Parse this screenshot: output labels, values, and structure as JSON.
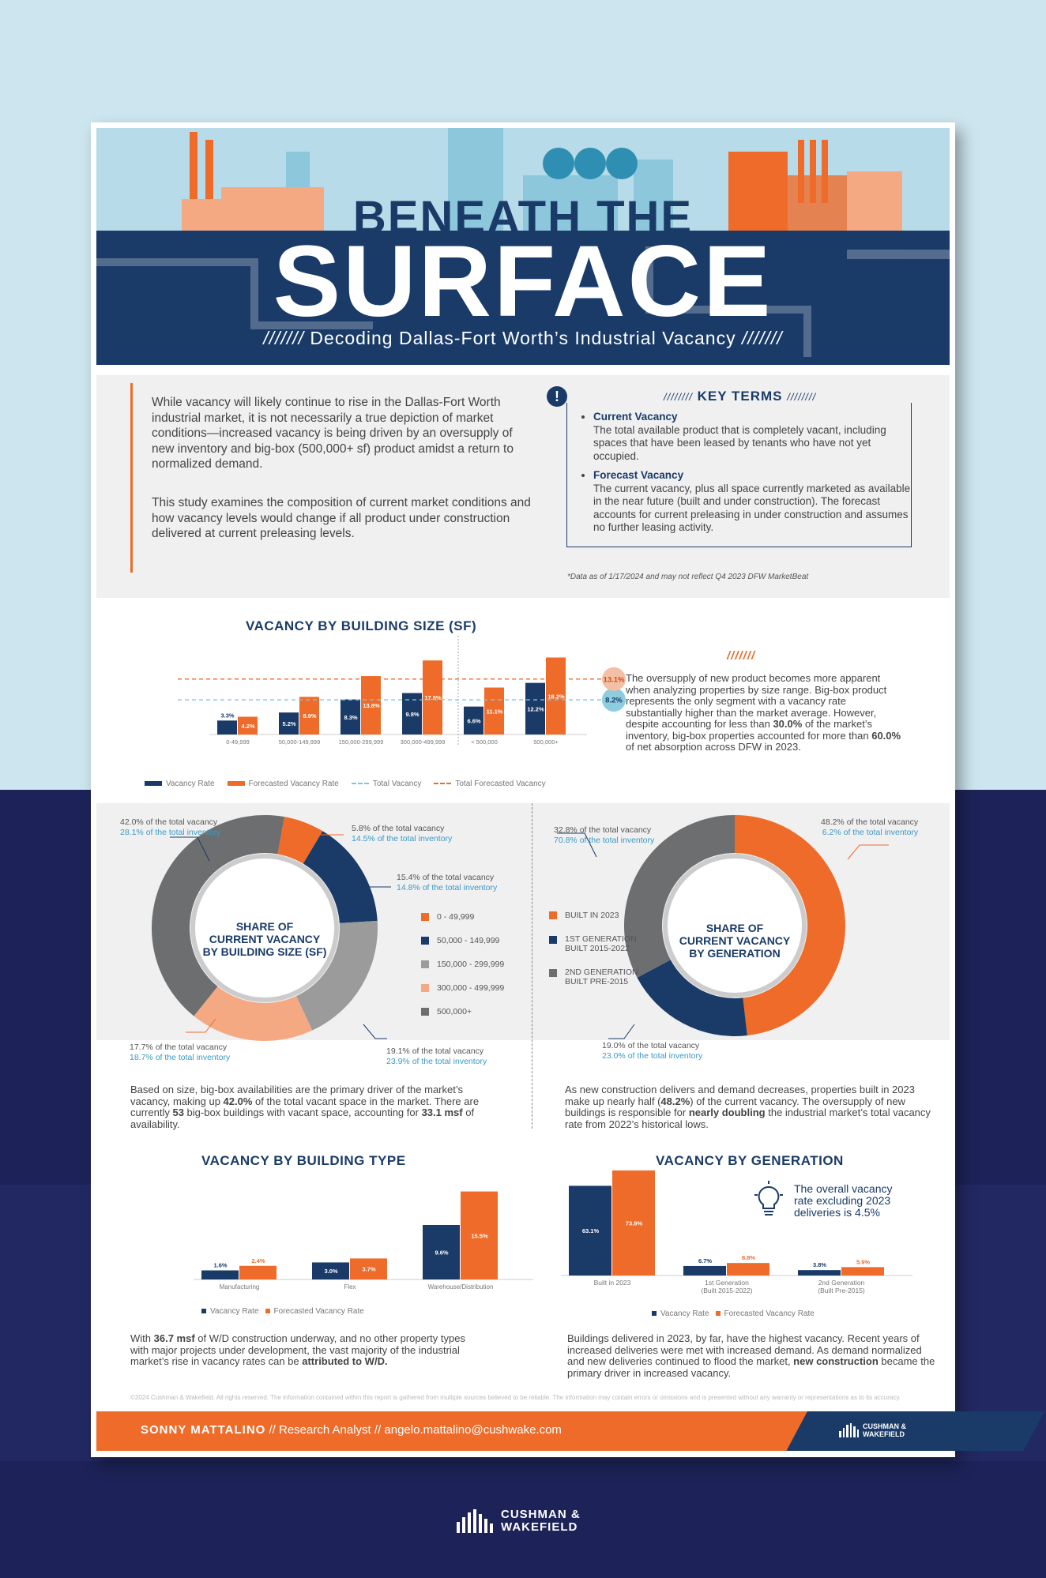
{
  "header": {
    "title_small": "BENEATH THE",
    "title_big": "SURFACE",
    "subtitle_prefix": "///////",
    "subtitle": "Decoding Dallas-Fort Worth’s Industrial Vacancy",
    "subtitle_suffix": "///////"
  },
  "intro": {
    "p1": "While vacancy will likely continue to rise in the Dallas-Fort Worth industrial market, it is not necessarily a true depiction of market conditions—increased vacancy is being driven by an oversupply of new inventory and big-box (500,000+ sf) product amidst a return to normalized demand.",
    "p2": "This study examines the composition of current market conditions and how vacancy levels would change if all product under construction delivered at current preleasing levels.",
    "key_terms_title": "KEY TERMS",
    "key_terms_slashes_left": "////////",
    "key_terms_slashes_right": "////////",
    "exclaim": "!",
    "term1_name": "Current Vacancy",
    "term1_def": "The total available product that is completely vacant, including spaces that have been leased by tenants who have not yet occupied.",
    "term2_name": "Forecast Vacancy",
    "term2_def": "The current vacancy, plus all space currently marketed as available in the near future (built and under construction). The forecast accounts for current preleasing in under construction and assumes no further leasing activity.",
    "note": "*Data as of 1/17/2024 and may not reflect Q4 2023 DFW MarketBeat"
  },
  "size_section": {
    "title": "VACANCY BY BUILDING SIZE (SF)",
    "slashes": "///////",
    "text_a": "The oversupply of new product becomes more apparent when analyzing properties by size range. Big-box product represents the only segment with a vacancy rate substantially higher than the market average. However, despite accounting for less than ",
    "text_b": "30.0%",
    "text_c": " of the market’s inventory, big-box properties accounted for more than ",
    "text_d": "60.0%",
    "text_e": " of net absorption across DFW in 2023.",
    "legend": [
      "Vacancy Rate",
      "Forecasted Vacancy Rate",
      "Total Vacancy",
      "Total Forecasted Vacancy"
    ]
  },
  "donut_size": {
    "center": [
      "SHARE OF",
      "CURRENT VACANCY",
      "BY BUILDING SIZE (SF)"
    ],
    "legend": [
      "0 - 49,999",
      "50,000 - 149,999",
      "150,000 - 299,999",
      "300,000 - 499,999",
      "500,000+"
    ],
    "callouts": [
      {
        "a": "42.0% of the total vacancy",
        "b": "28.1% of the total inventory"
      },
      {
        "a": "5.8% of the total vacancy",
        "b": "14.5% of the total inventory"
      },
      {
        "a": "15.4% of the total vacancy",
        "b": "14.8% of the total inventory"
      },
      {
        "a": "17.7% of the total vacancy",
        "b": "18.7% of the total inventory"
      },
      {
        "a": "19.1% of the total vacancy",
        "b": "23.9% of the total inventory"
      }
    ],
    "text_a": "Based on size, big-box availabilities are the primary driver of the market’s vacancy, making up ",
    "text_b": "42.0%",
    "text_c": " of the total vacant space in the market. There are currently ",
    "text_d": "53",
    "text_e": " big-box buildings with vacant space, accounting for ",
    "text_f": "33.1 msf",
    "text_g": " of availability."
  },
  "donut_gen": {
    "center": [
      "SHARE OF",
      "CURRENT VACANCY",
      "BY GENERATION"
    ],
    "legend": [
      "BUILT IN 2023",
      "1ST GENERATION\nBUILT 2015-2022",
      "2ND GENERATION\nBUILT PRE-2015"
    ],
    "callouts": [
      {
        "a": "32.8% of the total vacancy",
        "b": "70.8% of the total inventory"
      },
      {
        "a": "48.2% of the total vacancy",
        "b": "6.2% of the total inventory"
      },
      {
        "a": "19.0% of the total vacancy",
        "b": "23.0% of the total inventory"
      }
    ],
    "text_a": "As new construction delivers and demand decreases, properties built in 2023 make up nearly half (",
    "text_b": "48.2%",
    "text_c": ") of the current vacancy. The oversupply of new buildings is responsible for ",
    "text_d": "nearly doubling",
    "text_e": " the industrial market’s total vacancy rate from 2022’s historical lows."
  },
  "type_section": {
    "title": "VACANCY BY BUILDING TYPE",
    "legend": [
      "Vacancy Rate",
      "Forecasted Vacancy Rate"
    ],
    "text_a": "With ",
    "text_b": "36.7 msf",
    "text_c": " of W/D construction underway, and no other property types with major projects under development, the vast majority of the industrial market’s rise in vacancy rates can be ",
    "text_d": "attributed to W/D."
  },
  "gen_section": {
    "title": "VACANCY BY GENERATION",
    "legend": [
      "Vacancy Rate",
      "Forecasted Vacancy Rate"
    ],
    "bulb_text": "The overall vacancy rate excluding 2023 deliveries is 4.5%",
    "text_a": "Buildings delivered in 2023, by far, have the highest vacancy. Recent years of increased deliveries were met with increased demand. As demand normalized and new deliveries continued to flood the market, ",
    "text_b": "new construction",
    "text_c": " became the primary driver in increased vacancy."
  },
  "chart_data": [
    {
      "type": "bar",
      "title": "VACANCY BY BUILDING SIZE (SF)",
      "categories": [
        "0-49,999",
        "50,000-149,999",
        "150,000-299,999",
        "300,000-499,999",
        "< 500,000",
        "500,000+"
      ],
      "series": [
        {
          "name": "Vacancy Rate",
          "values": [
            3.3,
            5.2,
            8.3,
            9.8,
            6.6,
            12.2
          ],
          "labels": [
            "3.3%",
            "5.2%",
            "8.3%",
            "9.8%",
            "6.6%",
            "12.2%"
          ]
        },
        {
          "name": "Forecasted Vacancy Rate",
          "values": [
            4.2,
            8.9,
            13.8,
            17.5,
            11.1,
            18.2
          ],
          "labels": [
            "4.2%",
            "8.9%",
            "13.8%",
            "17.5%",
            "11.1%",
            "18.2%"
          ]
        }
      ],
      "reference_lines": [
        {
          "name": "Total Vacancy",
          "value": 8.2,
          "label": "8.2%"
        },
        {
          "name": "Total Forecasted Vacancy",
          "value": 13.1,
          "label": "13.1%"
        }
      ],
      "ylim": [
        0,
        20
      ]
    },
    {
      "type": "pie",
      "categories": [
        "0 - 49,999",
        "50,000 - 149,999",
        "150,000 - 299,999",
        "300,000 - 499,999",
        "500,000+"
      ],
      "values": [
        5.8,
        15.4,
        19.1,
        17.7,
        42.0
      ],
      "colors": [
        "#ef6b2a",
        "#1a3b68",
        "#9b9b9b",
        "#f5a983",
        "#6d6e70"
      ]
    },
    {
      "type": "pie",
      "categories": [
        "BUILT IN 2023",
        "1ST GENERATION BUILT 2015-2022",
        "2ND GENERATION BUILT PRE-2015"
      ],
      "values": [
        48.2,
        19.0,
        32.8
      ],
      "colors": [
        "#ef6b2a",
        "#1a3b68",
        "#6d6e70"
      ]
    },
    {
      "type": "bar",
      "title": "VACANCY BY BUILDING TYPE",
      "categories": [
        "Manufacturing",
        "Flex",
        "Warehouse/Distribution"
      ],
      "series": [
        {
          "name": "Vacancy Rate",
          "values": [
            1.6,
            3.0,
            9.6
          ],
          "labels": [
            "1.6%",
            "3.0%",
            "9.6%"
          ]
        },
        {
          "name": "Forecasted Vacancy Rate",
          "values": [
            2.4,
            3.7,
            15.5
          ],
          "labels": [
            "2.4%",
            "3.7%",
            "15.5%"
          ]
        }
      ],
      "ylim": [
        0,
        16
      ]
    },
    {
      "type": "bar",
      "title": "VACANCY BY GENERATION",
      "categories": [
        "Built in 2023",
        "1st Generation\n(Built 2015-2022)",
        "2nd Generation\n(Built Pre-2015)"
      ],
      "series": [
        {
          "name": "Vacancy Rate",
          "values": [
            63.1,
            6.7,
            3.8
          ],
          "labels": [
            "63.1%",
            "6.7%",
            "3.8%"
          ]
        },
        {
          "name": "Forecasted Vacancy Rate",
          "values": [
            73.9,
            8.8,
            5.9
          ],
          "labels": [
            "73.9%",
            "8.8%",
            "5.9%"
          ]
        }
      ],
      "ylim": [
        0,
        75
      ]
    }
  ],
  "footer": {
    "copyright": "©2024 Cushman & Wakefield. All rights reserved. The information contained within this report is gathered from multiple sources believed to be reliable. The information may contain errors or omissions and is presented without any warranty or representations as to its accuracy.",
    "author": "SONNY MATTALINO",
    "sep1": " // ",
    "role": "Research Analyst",
    "sep2": " // ",
    "email": "angelo.mattalino@cushwake.com",
    "logo_line1": "CUSHMAN &",
    "logo_line2": "WAKEFIELD"
  },
  "colors": {
    "navy": "#1a3b68",
    "orange": "#ef6b2a",
    "blue": "#3a9ac4",
    "grey": "#6d6e70",
    "light_grey": "#9b9b9b",
    "peach": "#f5a983"
  }
}
